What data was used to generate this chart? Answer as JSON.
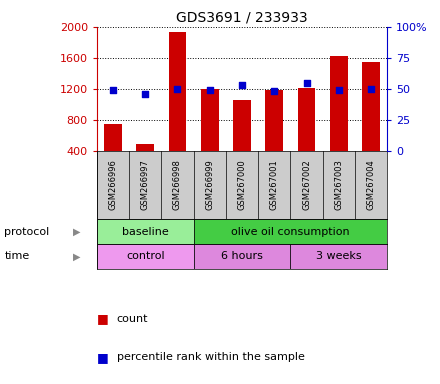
{
  "title": "GDS3691 / 233933",
  "samples": [
    "GSM266996",
    "GSM266997",
    "GSM266998",
    "GSM266999",
    "GSM267000",
    "GSM267001",
    "GSM267002",
    "GSM267003",
    "GSM267004"
  ],
  "counts": [
    740,
    490,
    1930,
    1200,
    1050,
    1180,
    1210,
    1620,
    1540
  ],
  "percentile_ranks": [
    49,
    46,
    50,
    49,
    53,
    48,
    55,
    49,
    50
  ],
  "left_ylim": [
    400,
    2000
  ],
  "right_ylim": [
    0,
    100
  ],
  "left_yticks": [
    400,
    800,
    1200,
    1600,
    2000
  ],
  "right_yticks": [
    0,
    25,
    50,
    75,
    100
  ],
  "right_yticklabels": [
    "0",
    "25",
    "50",
    "75",
    "100%"
  ],
  "bar_color": "#cc0000",
  "dot_color": "#0000cc",
  "protocol_groups": [
    {
      "label": "baseline",
      "start": 0,
      "end": 3,
      "color": "#99ee99"
    },
    {
      "label": "olive oil consumption",
      "start": 3,
      "end": 9,
      "color": "#44cc44"
    }
  ],
  "time_groups": [
    {
      "label": "control",
      "start": 0,
      "end": 3,
      "color": "#ee99ee"
    },
    {
      "label": "6 hours",
      "start": 3,
      "end": 6,
      "color": "#dd88dd"
    },
    {
      "label": "3 weeks",
      "start": 6,
      "end": 9,
      "color": "#dd88dd"
    }
  ],
  "legend_count_label": "count",
  "legend_pct_label": "percentile rank within the sample",
  "protocol_label": "protocol",
  "time_label": "time",
  "left_axis_color": "#cc0000",
  "right_axis_color": "#0000cc",
  "names_bg_color": "#cccccc",
  "names_divider_color": "#888888"
}
